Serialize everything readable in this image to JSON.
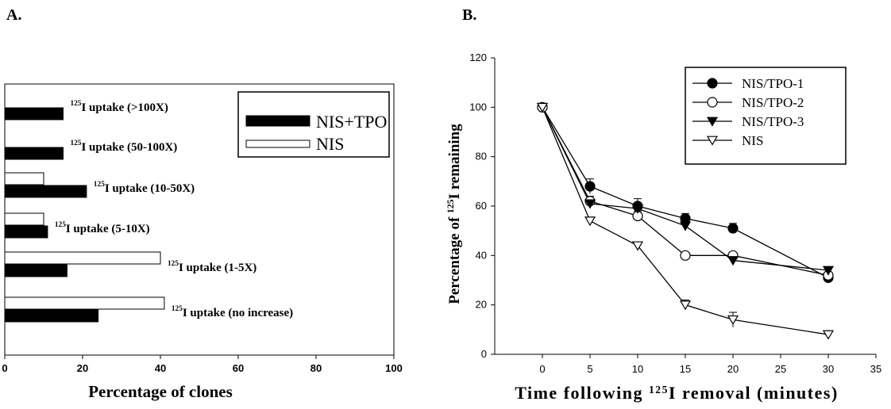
{
  "panels": {
    "a_label": "A.",
    "b_label": "B."
  },
  "chart_data": [
    {
      "type": "bar",
      "orientation": "horizontal",
      "categories": [
        {
          "sup": "125",
          "text": "I uptake (>100X)"
        },
        {
          "sup": "125",
          "text": "I uptake (50-100X)"
        },
        {
          "sup": "125",
          "text": "I uptake (10-50X)"
        },
        {
          "sup": "125",
          "text": "I uptake (5-10X)"
        },
        {
          "sup": "125",
          "text": "I uptake (1-5X)"
        },
        {
          "sup": "125",
          "text": "I uptake (no increase)"
        }
      ],
      "series": [
        {
          "name": "NIS+TPO",
          "color": "#000000",
          "values": [
            15,
            15,
            21,
            11,
            16,
            24
          ]
        },
        {
          "name": "NIS",
          "color": "#ffffff",
          "values": [
            0,
            0,
            10,
            10,
            40,
            41
          ]
        }
      ],
      "xlabel": "Percentage of clones",
      "xlim": [
        0,
        100
      ],
      "xticks": [
        "0",
        "20",
        "40",
        "60",
        "80",
        "100"
      ],
      "legend_position": "top-right"
    },
    {
      "type": "line",
      "x": [
        0,
        5,
        10,
        15,
        20,
        30
      ],
      "series": [
        {
          "name": "NIS/TPO-1",
          "marker": "filled-circle",
          "values": [
            100,
            68,
            60,
            55,
            51,
            31
          ],
          "errors": [
            0,
            3,
            3,
            2,
            2,
            1
          ]
        },
        {
          "name": "NIS/TPO-2",
          "marker": "open-circle",
          "values": [
            100,
            62,
            56,
            40,
            40,
            32
          ],
          "errors": [
            0,
            2,
            2,
            1,
            1,
            1
          ]
        },
        {
          "name": "NIS/TPO-3",
          "marker": "filled-triangle-down",
          "values": [
            100,
            61,
            59,
            52,
            38,
            34
          ],
          "errors": [
            0,
            2,
            2,
            2,
            2,
            1
          ]
        },
        {
          "name": "NIS",
          "marker": "open-triangle-down",
          "values": [
            100,
            54,
            44,
            20,
            14,
            8
          ],
          "errors": [
            0,
            1,
            1,
            2,
            3,
            1
          ]
        }
      ],
      "xlabel": {
        "prefix": "Time following ",
        "sup": "125",
        "suffix": "I removal (minutes)"
      },
      "ylabel": {
        "prefix": "Percentage of ",
        "sup": "125",
        "suffix": "I remaining"
      },
      "xlim": [
        -5,
        35
      ],
      "ylim": [
        0,
        120
      ],
      "xticks": [
        "0",
        "5",
        "10",
        "15",
        "20",
        "25",
        "30",
        "35"
      ],
      "yticks": [
        "0",
        "20",
        "40",
        "60",
        "80",
        "100",
        "120"
      ],
      "legend_position": "top-right"
    }
  ]
}
